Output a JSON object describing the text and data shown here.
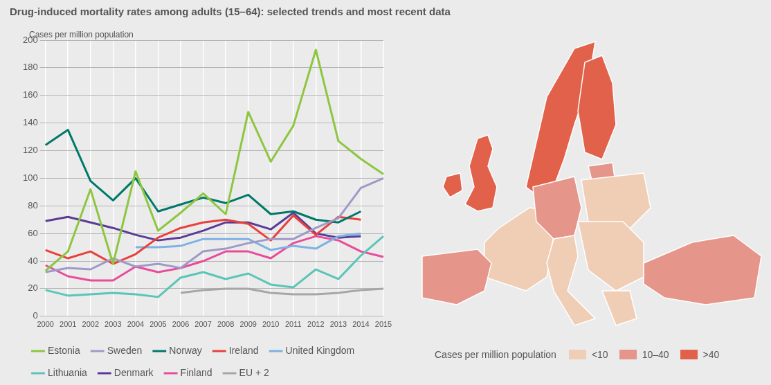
{
  "chart_data": [
    {
      "type": "line",
      "title": "Drug-induced mortality rates among adults (15–64): selected trends and most recent data",
      "ylabel": "Cases per million population",
      "categories": [
        "2000",
        "2001",
        "2002",
        "2003",
        "2004",
        "2005",
        "2006",
        "2007",
        "2008",
        "2009",
        "2010",
        "2011",
        "2012",
        "2013",
        "2014",
        "2015"
      ],
      "series": [
        {
          "name": "Estonia",
          "color": "#8dc63f",
          "values": [
            33,
            47,
            92,
            38,
            105,
            62,
            75,
            89,
            74,
            148,
            112,
            138,
            193,
            127,
            114,
            103
          ]
        },
        {
          "name": "Sweden",
          "color": "#9e9ac8",
          "values": [
            32,
            35,
            34,
            42,
            36,
            38,
            35,
            47,
            49,
            53,
            56,
            56,
            64,
            71,
            93,
            100
          ]
        },
        {
          "name": "Norway",
          "color": "#00786a",
          "values": [
            124,
            135,
            98,
            84,
            100,
            76,
            81,
            86,
            82,
            88,
            74,
            76,
            70,
            68,
            76,
            null
          ]
        },
        {
          "name": "Ireland",
          "color": "#e8413c",
          "values": [
            48,
            42,
            47,
            38,
            45,
            57,
            64,
            68,
            70,
            67,
            55,
            73,
            59,
            72,
            70,
            null
          ]
        },
        {
          "name": "United Kingdom",
          "color": "#7fb1e3",
          "values": [
            null,
            null,
            null,
            null,
            50,
            50,
            51,
            56,
            56,
            56,
            48,
            51,
            49,
            58,
            60,
            null
          ]
        },
        {
          "name": "Lithuania",
          "color": "#5bc4b8",
          "values": [
            19,
            15,
            16,
            17,
            16,
            14,
            28,
            32,
            27,
            31,
            23,
            21,
            34,
            27,
            44,
            58
          ]
        },
        {
          "name": "Denmark",
          "color": "#5b3b96",
          "values": [
            69,
            72,
            68,
            64,
            59,
            55,
            57,
            62,
            68,
            68,
            63,
            75,
            60,
            57,
            58,
            null
          ]
        },
        {
          "name": "Finland",
          "color": "#e84c9a",
          "values": [
            37,
            29,
            26,
            26,
            36,
            32,
            35,
            40,
            47,
            47,
            42,
            53,
            58,
            55,
            47,
            43
          ]
        },
        {
          "name": "EU + 2",
          "color": "#a6a6a6",
          "values": [
            null,
            null,
            null,
            null,
            null,
            null,
            17,
            19,
            20,
            20,
            17,
            16,
            16,
            17,
            19,
            20
          ]
        }
      ],
      "ylim": [
        0,
        200
      ],
      "yticks": [
        0,
        20,
        40,
        60,
        80,
        100,
        120,
        140,
        160,
        180,
        200
      ],
      "grid": true,
      "legend": "bottom",
      "marker": "none",
      "line_style": "solid"
    },
    {
      "type": "other",
      "legend_title": "Cases per million population",
      "categories": [
        "<10",
        "10–40",
        ">40"
      ],
      "colors": [
        "#f0cdb5",
        "#e5958a",
        "#e2614b"
      ]
    }
  ]
}
